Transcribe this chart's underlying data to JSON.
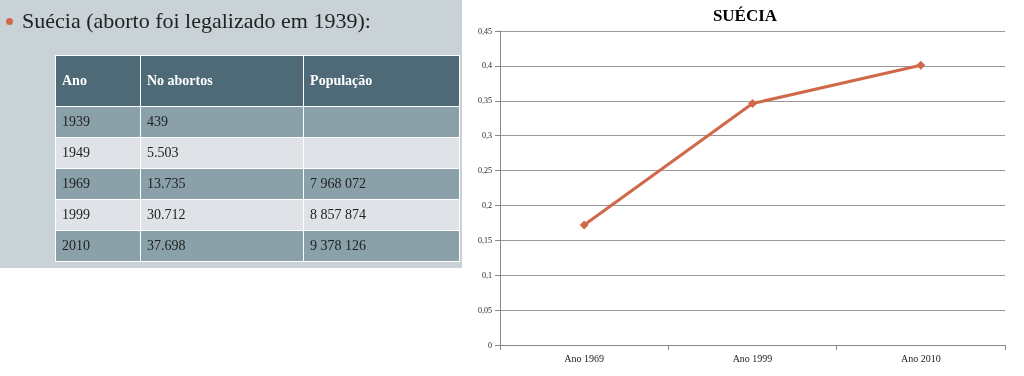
{
  "chart_data": [
    {
      "type": "other",
      "title": "Suécia (aborto foi legalizado em 1939):",
      "annotations": [
        "Ano",
        "No abortos",
        "População",
        "1939",
        "439",
        null,
        "1949",
        "5.503",
        null,
        "1969",
        "13.735",
        "7 968 072",
        "1999",
        "30.712",
        "8 857 874",
        "2010",
        "37.698",
        "9 378 126"
      ]
    },
    {
      "type": "line",
      "title": "SUÉCIA",
      "categories": [
        "Ano 1969",
        "Ano 1999",
        "Ano 2010"
      ],
      "series": [
        {
          "color": "#d0694a",
          "values": [
            0.172,
            0.346,
            0.401
          ]
        }
      ],
      "ylim": [
        0,
        0.45
      ],
      "yticks": [
        {
          "value": 0,
          "label": "0"
        },
        {
          "value": 0.05,
          "label": "0,05"
        },
        {
          "value": 0.1,
          "label": "0,1"
        },
        {
          "value": 0.15,
          "label": "0,15"
        },
        {
          "value": 0.2,
          "label": "0,2"
        },
        {
          "value": 0.25,
          "label": "0,25"
        },
        {
          "value": 0.3,
          "label": "0,3"
        },
        {
          "value": 0.35,
          "label": "0,35"
        },
        {
          "value": 0.4,
          "label": "0,4"
        },
        {
          "value": 0.45,
          "label": "0,45"
        }
      ],
      "grid": "y",
      "marker": "diamond",
      "line_style": "solid"
    }
  ]
}
